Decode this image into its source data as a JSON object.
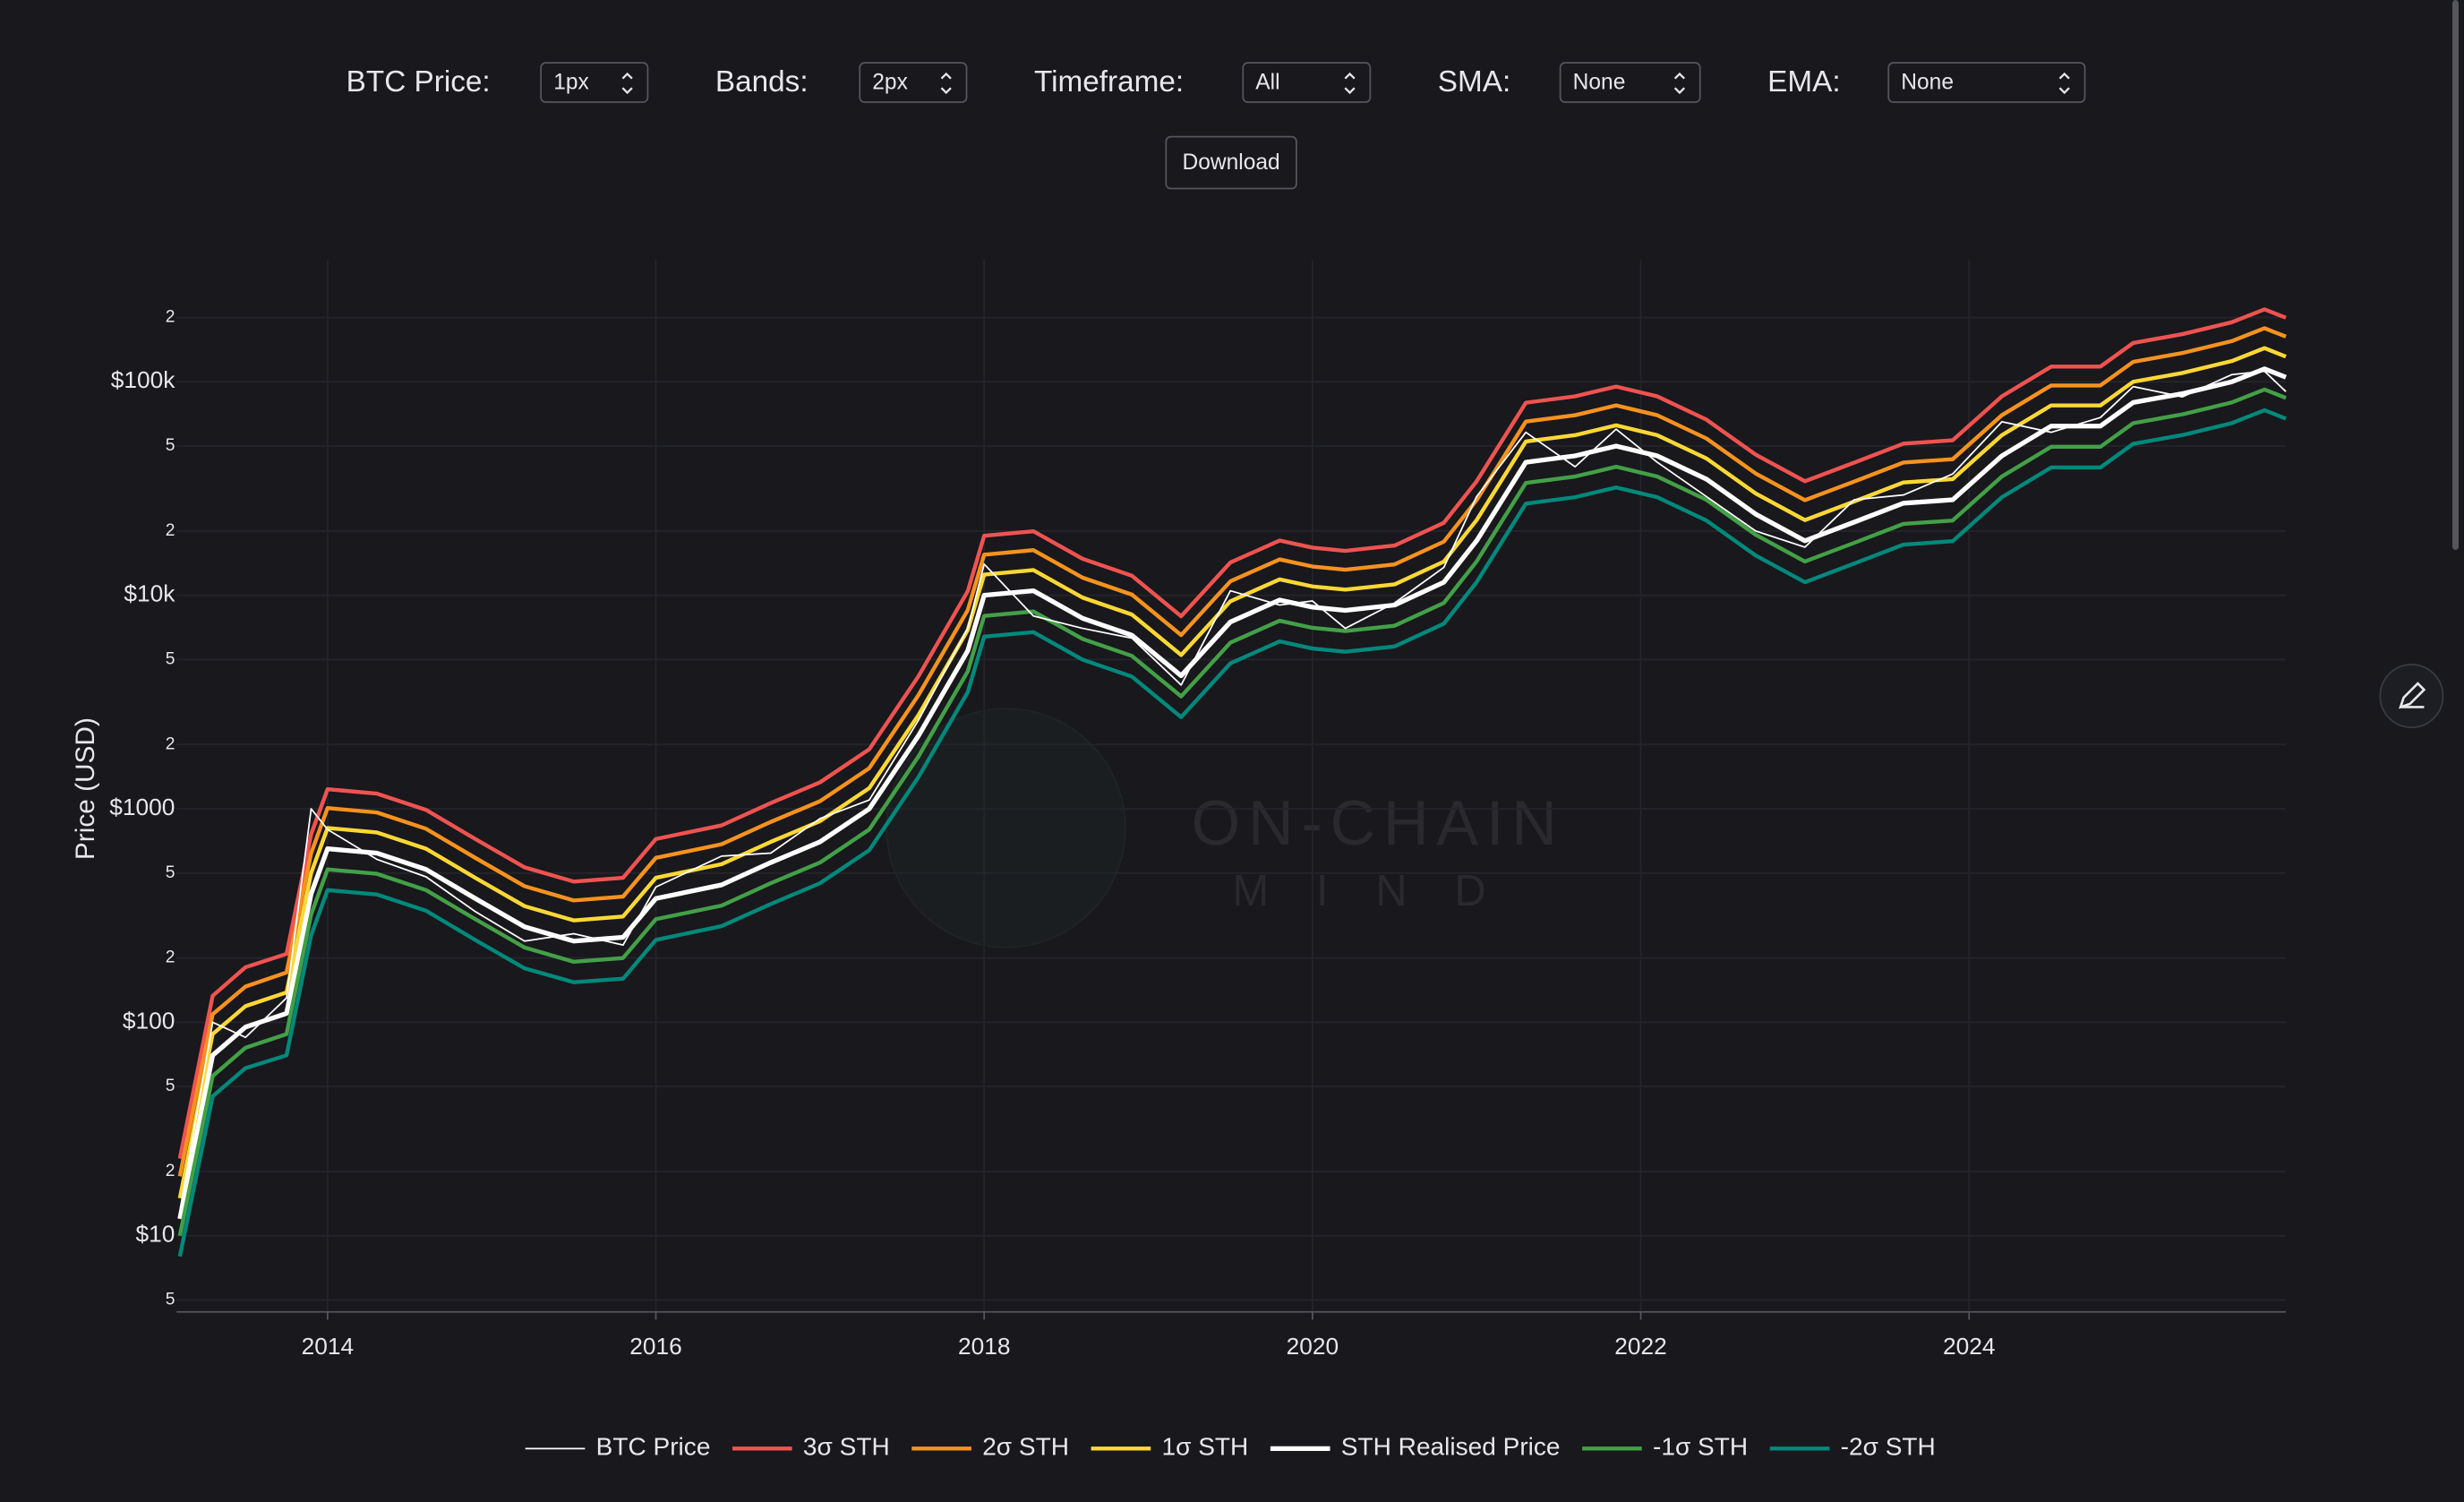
{
  "controls": [
    {
      "label": "BTC Price:",
      "value": "1px"
    },
    {
      "label": "Bands:",
      "value": "2px"
    },
    {
      "label": "Timeframe:",
      "value": "All"
    },
    {
      "label": "SMA:",
      "value": "None"
    },
    {
      "label": "EMA:",
      "value": "None"
    }
  ],
  "download": "Download",
  "chart_data": {
    "type": "line",
    "y_label": "Price (USD)",
    "annotations": [
      "ON-CHAIN",
      "MIND"
    ],
    "log_y": true,
    "grid": true,
    "legend": "bottom",
    "xlim": [
      2013.08,
      2025.93
    ],
    "xticks": [
      2014,
      2016,
      2018,
      2020,
      2022,
      2024
    ],
    "ylim": [
      4.4,
      375000
    ],
    "yticks": [
      5,
      {
        "value": 10,
        "label": "$10"
      },
      {
        "value": 20,
        "label": "2"
      },
      {
        "value": 50,
        "label": "5"
      },
      {
        "value": 100,
        "label": "$100"
      },
      {
        "value": 200,
        "label": "2"
      },
      {
        "value": 500,
        "label": "5"
      },
      {
        "value": 1000,
        "label": "$1000"
      },
      {
        "value": 2000,
        "label": "2"
      },
      {
        "value": 5000,
        "label": "5"
      },
      {
        "value": 10000,
        "label": "$10k"
      },
      {
        "value": 20000,
        "label": "2"
      },
      {
        "value": 50000,
        "label": "5"
      },
      {
        "value": 100000,
        "label": "$100k"
      },
      {
        "value": 200000,
        "label": "2"
      }
    ],
    "x": [
      2013.1,
      2013.3,
      2013.5,
      2013.75,
      2013.9,
      2014.0,
      2014.3,
      2014.6,
      2014.9,
      2015.2,
      2015.5,
      2015.8,
      2016.0,
      2016.4,
      2016.7,
      2017.0,
      2017.3,
      2017.6,
      2017.9,
      2018.0,
      2018.3,
      2018.6,
      2018.9,
      2019.2,
      2019.5,
      2019.8,
      2020.0,
      2020.2,
      2020.5,
      2020.8,
      2021.0,
      2021.3,
      2021.6,
      2021.85,
      2022.1,
      2022.4,
      2022.7,
      2023.0,
      2023.3,
      2023.6,
      2023.9,
      2024.2,
      2024.5,
      2024.8,
      2025.0,
      2025.3,
      2025.6,
      2025.8,
      2025.93
    ],
    "series": [
      {
        "name": "BTC Price",
        "color": "#ffffff",
        "width": 1,
        "values": [
          13,
          100,
          85,
          130,
          1000,
          800,
          580,
          480,
          330,
          240,
          260,
          230,
          430,
          600,
          620,
          900,
          1100,
          2600,
          7000,
          14000,
          8000,
          7000,
          6300,
          3800,
          10500,
          9000,
          9400,
          7000,
          9200,
          13500,
          29000,
          58000,
          40000,
          60000,
          42000,
          29000,
          20000,
          16800,
          28000,
          29500,
          37000,
          65000,
          58000,
          68000,
          95000,
          85000,
          108000,
          112000,
          90000
        ]
      },
      {
        "name": "3σ STH",
        "color": "#ef5350",
        "width": 2.5,
        "values": [
          23,
          133,
          181,
          209,
          760,
          1235,
          1178,
          988,
          722,
          532,
          456,
          475,
          722,
          836,
          1064,
          1330,
          1900,
          4180,
          10450,
          19000,
          19950,
          14820,
          12350,
          7980,
          14250,
          18050,
          16720,
          16150,
          17100,
          21850,
          34200,
          79800,
          85500,
          95000,
          85500,
          66500,
          45600,
          34200,
          41800,
          51300,
          53200,
          85500,
          117800,
          117800,
          152000,
          167200,
          190000,
          218500,
          199500
        ]
      },
      {
        "name": "2σ STH",
        "color": "#f6921e",
        "width": 2.5,
        "values": [
          19,
          109,
          147,
          171,
          620,
          1008,
          961,
          806,
          589,
          434,
          372,
          388,
          589,
          682,
          868,
          1085,
          1550,
          3410,
          8525,
          15500,
          16275,
          12090,
          10075,
          6510,
          11625,
          14725,
          13640,
          13175,
          13950,
          17825,
          27900,
          65100,
          69750,
          77500,
          69750,
          54250,
          37200,
          27900,
          34100,
          41850,
          43400,
          69750,
          96100,
          96100,
          124000,
          136400,
          155000,
          178250,
          162750
        ]
      },
      {
        "name": "1σ STH",
        "color": "#fdd835",
        "width": 2.5,
        "values": [
          15,
          88,
          119,
          138,
          500,
          813,
          775,
          650,
          475,
          350,
          300,
          313,
          475,
          550,
          700,
          875,
          1250,
          2750,
          6875,
          12500,
          13125,
          9750,
          8125,
          5250,
          9375,
          11875,
          11000,
          10625,
          11250,
          14375,
          22500,
          52500,
          56250,
          62500,
          56250,
          43750,
          30000,
          22500,
          27500,
          33750,
          35000,
          56250,
          77500,
          77500,
          100000,
          110000,
          125000,
          143750,
          131250
        ]
      },
      {
        "name": "STH Realised Price",
        "color": "#ffffff",
        "width": 3,
        "values": [
          12,
          70,
          95,
          110,
          400,
          650,
          620,
          520,
          380,
          280,
          240,
          250,
          380,
          440,
          560,
          700,
          1000,
          2200,
          5500,
          10000,
          10500,
          7800,
          6500,
          4200,
          7500,
          9500,
          8800,
          8500,
          9000,
          11500,
          18000,
          42000,
          45000,
          50000,
          45000,
          35000,
          24000,
          18000,
          22000,
          27000,
          28000,
          45000,
          62000,
          62000,
          80000,
          88000,
          100000,
          115000,
          105000
        ]
      },
      {
        "name": "-1σ STH",
        "color": "#43a047",
        "width": 2.5,
        "values": [
          10,
          56,
          76,
          88,
          320,
          520,
          496,
          416,
          304,
          224,
          192,
          200,
          304,
          352,
          448,
          560,
          800,
          1760,
          4400,
          8000,
          8400,
          6240,
          5200,
          3360,
          6000,
          7600,
          7040,
          6800,
          7200,
          9200,
          14400,
          33600,
          36000,
          40000,
          36000,
          28000,
          19200,
          14400,
          17600,
          21600,
          22400,
          36000,
          49600,
          49600,
          64000,
          70400,
          80000,
          92000,
          84000
        ]
      },
      {
        "name": "-2σ STH",
        "color": "#00897b",
        "width": 2.5,
        "values": [
          8,
          45,
          61,
          70,
          256,
          416,
          397,
          333,
          243,
          179,
          154,
          160,
          243,
          282,
          358,
          448,
          640,
          1408,
          3520,
          6400,
          6720,
          4992,
          4160,
          2688,
          4800,
          6080,
          5632,
          5440,
          5760,
          7360,
          11520,
          26880,
          28800,
          32000,
          28800,
          22400,
          15360,
          11520,
          14080,
          17280,
          17920,
          28800,
          39680,
          39680,
          51200,
          56320,
          64000,
          73600,
          67200
        ]
      }
    ]
  }
}
